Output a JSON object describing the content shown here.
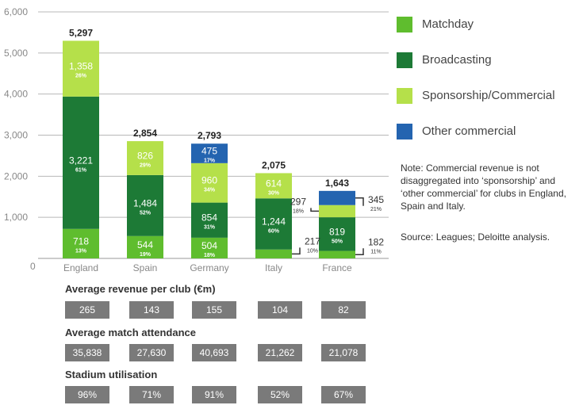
{
  "chart_data": {
    "type": "bar",
    "stacked": true,
    "categories": [
      "England",
      "Spain",
      "Germany",
      "Italy",
      "France"
    ],
    "ylim": [
      0,
      6000
    ],
    "yticks": [
      "0",
      "1,000",
      "2,000",
      "3,000",
      "4,000",
      "5,000",
      "6,000"
    ],
    "grid": true,
    "legend_position": "right",
    "series": [
      {
        "name": "Matchday",
        "color": "#5fbd2e",
        "values": [
          718,
          544,
          504,
          217,
          182
        ],
        "labels": [
          "718",
          "544",
          "504",
          "",
          ""
        ],
        "pct": [
          "13%",
          "19%",
          "18%",
          "",
          ""
        ]
      },
      {
        "name": "Broadcasting",
        "color": "#1d7a36",
        "values": [
          3221,
          1484,
          854,
          1244,
          819
        ],
        "labels": [
          "3,221",
          "1,484",
          "854",
          "1,244",
          "819"
        ],
        "pct": [
          "61%",
          "52%",
          "31%",
          "60%",
          "50%"
        ]
      },
      {
        "name": "Sponsorship/Commercial",
        "color": "#b5e04a",
        "values": [
          1358,
          826,
          960,
          614,
          297
        ],
        "labels": [
          "1,358",
          "826",
          "960",
          "614",
          ""
        ],
        "pct": [
          "26%",
          "29%",
          "34%",
          "30%",
          ""
        ]
      },
      {
        "name": "Other commercial",
        "color": "#2464b0",
        "values": [
          0,
          0,
          475,
          0,
          345
        ],
        "labels": [
          "",
          "",
          "475",
          "",
          ""
        ],
        "pct": [
          "",
          "",
          "17%",
          "",
          ""
        ]
      }
    ],
    "totals": [
      "5,297",
      "2,854",
      "2,793",
      "2,075",
      "1,643"
    ],
    "callouts": [
      {
        "category": "Italy",
        "value": "217",
        "pct": "10%",
        "side": "right",
        "segment": 0
      },
      {
        "category": "France",
        "value": "297",
        "pct": "18%",
        "side": "left",
        "segment": 2
      },
      {
        "category": "France",
        "value": "345",
        "pct": "21%",
        "side": "right",
        "segment": 3
      },
      {
        "category": "France",
        "value": "182",
        "pct": "11%",
        "side": "right",
        "segment": 0
      }
    ]
  },
  "note": "Note: Commercial revenue is not disaggregated into ‘sponsorship’ and ‘other commercial’ for clubs in England, Spain and Italy.",
  "source": "Source: Leagues; Deloitte analysis.",
  "stats": [
    {
      "title": "Average revenue per club (€m)",
      "values": [
        "265",
        "143",
        "155",
        "104",
        "82"
      ]
    },
    {
      "title": "Average match attendance",
      "values": [
        "35,838",
        "27,630",
        "40,693",
        "21,262",
        "21,078"
      ]
    },
    {
      "title": "Stadium utilisation",
      "values": [
        "96%",
        "71%",
        "91%",
        "52%",
        "67%"
      ]
    }
  ]
}
